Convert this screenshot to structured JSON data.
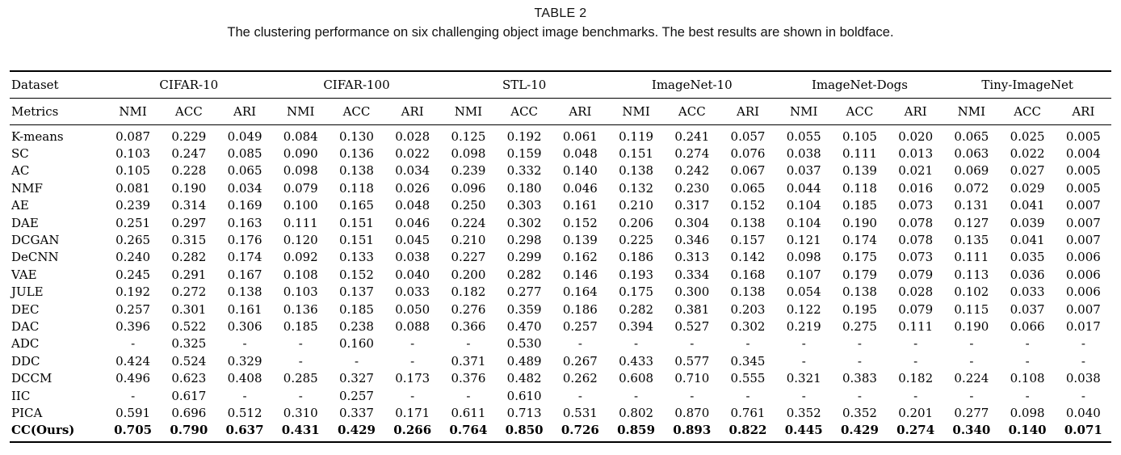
{
  "title": "TABLE 2",
  "caption": "The clustering performance on six challenging object image benchmarks. The best results are shown in boldface.",
  "table": {
    "corner": {
      "dataset": "Dataset",
      "metrics": "Metrics"
    },
    "groups": [
      "CIFAR-10",
      "CIFAR-100",
      "STL-10",
      "ImageNet-10",
      "ImageNet-Dogs",
      "Tiny-ImageNet"
    ],
    "metrics": [
      "NMI",
      "ACC",
      "ARI"
    ],
    "rows": [
      {
        "method": "K-means",
        "bold": false,
        "values": [
          "0.087",
          "0.229",
          "0.049",
          "0.084",
          "0.130",
          "0.028",
          "0.125",
          "0.192",
          "0.061",
          "0.119",
          "0.241",
          "0.057",
          "0.055",
          "0.105",
          "0.020",
          "0.065",
          "0.025",
          "0.005"
        ]
      },
      {
        "method": "SC",
        "bold": false,
        "values": [
          "0.103",
          "0.247",
          "0.085",
          "0.090",
          "0.136",
          "0.022",
          "0.098",
          "0.159",
          "0.048",
          "0.151",
          "0.274",
          "0.076",
          "0.038",
          "0.111",
          "0.013",
          "0.063",
          "0.022",
          "0.004"
        ]
      },
      {
        "method": "AC",
        "bold": false,
        "values": [
          "0.105",
          "0.228",
          "0.065",
          "0.098",
          "0.138",
          "0.034",
          "0.239",
          "0.332",
          "0.140",
          "0.138",
          "0.242",
          "0.067",
          "0.037",
          "0.139",
          "0.021",
          "0.069",
          "0.027",
          "0.005"
        ]
      },
      {
        "method": "NMF",
        "bold": false,
        "values": [
          "0.081",
          "0.190",
          "0.034",
          "0.079",
          "0.118",
          "0.026",
          "0.096",
          "0.180",
          "0.046",
          "0.132",
          "0.230",
          "0.065",
          "0.044",
          "0.118",
          "0.016",
          "0.072",
          "0.029",
          "0.005"
        ]
      },
      {
        "method": "AE",
        "bold": false,
        "values": [
          "0.239",
          "0.314",
          "0.169",
          "0.100",
          "0.165",
          "0.048",
          "0.250",
          "0.303",
          "0.161",
          "0.210",
          "0.317",
          "0.152",
          "0.104",
          "0.185",
          "0.073",
          "0.131",
          "0.041",
          "0.007"
        ]
      },
      {
        "method": "DAE",
        "bold": false,
        "values": [
          "0.251",
          "0.297",
          "0.163",
          "0.111",
          "0.151",
          "0.046",
          "0.224",
          "0.302",
          "0.152",
          "0.206",
          "0.304",
          "0.138",
          "0.104",
          "0.190",
          "0.078",
          "0.127",
          "0.039",
          "0.007"
        ]
      },
      {
        "method": "DCGAN",
        "bold": false,
        "values": [
          "0.265",
          "0.315",
          "0.176",
          "0.120",
          "0.151",
          "0.045",
          "0.210",
          "0.298",
          "0.139",
          "0.225",
          "0.346",
          "0.157",
          "0.121",
          "0.174",
          "0.078",
          "0.135",
          "0.041",
          "0.007"
        ]
      },
      {
        "method": "DeCNN",
        "bold": false,
        "values": [
          "0.240",
          "0.282",
          "0.174",
          "0.092",
          "0.133",
          "0.038",
          "0.227",
          "0.299",
          "0.162",
          "0.186",
          "0.313",
          "0.142",
          "0.098",
          "0.175",
          "0.073",
          "0.111",
          "0.035",
          "0.006"
        ]
      },
      {
        "method": "VAE",
        "bold": false,
        "values": [
          "0.245",
          "0.291",
          "0.167",
          "0.108",
          "0.152",
          "0.040",
          "0.200",
          "0.282",
          "0.146",
          "0.193",
          "0.334",
          "0.168",
          "0.107",
          "0.179",
          "0.079",
          "0.113",
          "0.036",
          "0.006"
        ]
      },
      {
        "method": "JULE",
        "bold": false,
        "values": [
          "0.192",
          "0.272",
          "0.138",
          "0.103",
          "0.137",
          "0.033",
          "0.182",
          "0.277",
          "0.164",
          "0.175",
          "0.300",
          "0.138",
          "0.054",
          "0.138",
          "0.028",
          "0.102",
          "0.033",
          "0.006"
        ]
      },
      {
        "method": "DEC",
        "bold": false,
        "values": [
          "0.257",
          "0.301",
          "0.161",
          "0.136",
          "0.185",
          "0.050",
          "0.276",
          "0.359",
          "0.186",
          "0.282",
          "0.381",
          "0.203",
          "0.122",
          "0.195",
          "0.079",
          "0.115",
          "0.037",
          "0.007"
        ]
      },
      {
        "method": "DAC",
        "bold": false,
        "values": [
          "0.396",
          "0.522",
          "0.306",
          "0.185",
          "0.238",
          "0.088",
          "0.366",
          "0.470",
          "0.257",
          "0.394",
          "0.527",
          "0.302",
          "0.219",
          "0.275",
          "0.111",
          "0.190",
          "0.066",
          "0.017"
        ]
      },
      {
        "method": "ADC",
        "bold": false,
        "values": [
          "-",
          "0.325",
          "-",
          "-",
          "0.160",
          "-",
          "-",
          "0.530",
          "-",
          "-",
          "-",
          "-",
          "-",
          "-",
          "-",
          "-",
          "-",
          "-"
        ]
      },
      {
        "method": "DDC",
        "bold": false,
        "values": [
          "0.424",
          "0.524",
          "0.329",
          "-",
          "-",
          "-",
          "0.371",
          "0.489",
          "0.267",
          "0.433",
          "0.577",
          "0.345",
          "-",
          "-",
          "-",
          "-",
          "-",
          "-"
        ]
      },
      {
        "method": "DCCM",
        "bold": false,
        "values": [
          "0.496",
          "0.623",
          "0.408",
          "0.285",
          "0.327",
          "0.173",
          "0.376",
          "0.482",
          "0.262",
          "0.608",
          "0.710",
          "0.555",
          "0.321",
          "0.383",
          "0.182",
          "0.224",
          "0.108",
          "0.038"
        ]
      },
      {
        "method": "IIC",
        "bold": false,
        "values": [
          "-",
          "0.617",
          "-",
          "-",
          "0.257",
          "-",
          "-",
          "0.610",
          "-",
          "-",
          "-",
          "-",
          "-",
          "-",
          "-",
          "-",
          "-",
          "-"
        ]
      },
      {
        "method": "PICA",
        "bold": false,
        "values": [
          "0.591",
          "0.696",
          "0.512",
          "0.310",
          "0.337",
          "0.171",
          "0.611",
          "0.713",
          "0.531",
          "0.802",
          "0.870",
          "0.761",
          "0.352",
          "0.352",
          "0.201",
          "0.277",
          "0.098",
          "0.040"
        ]
      },
      {
        "method": "CC(Ours)",
        "bold": true,
        "values": [
          "0.705",
          "0.790",
          "0.637",
          "0.431",
          "0.429",
          "0.266",
          "0.764",
          "0.850",
          "0.726",
          "0.859",
          "0.893",
          "0.822",
          "0.445",
          "0.429",
          "0.274",
          "0.340",
          "0.140",
          "0.071"
        ]
      }
    ]
  }
}
